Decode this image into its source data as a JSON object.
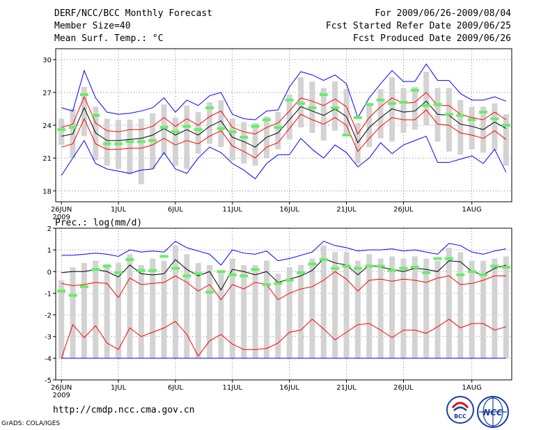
{
  "header": {
    "title": "DERF/NCC/BCC Monthly Forecast",
    "member_size": "Member Size=40",
    "variable": "Mean Surf. Temp.: °C",
    "period": "For 2009/06/26-2009/08/04",
    "fcst_started": "Fcst Started Refer Date 2009/06/25",
    "fcst_produced": "Fcst Produced Date 2009/06/26"
  },
  "footer": {
    "url": "http://cmdp.ncc.cma.gov.cn",
    "grads": "GrADS: COLA/IGES",
    "logo_left": "BCC",
    "logo_right": "NCC"
  },
  "colors": {
    "max_min": "#0000ff",
    "spread": "#ff0000",
    "mean": "#000000",
    "member_bar": "#d3d3d3",
    "observed_marker": "#66ee66"
  },
  "chart_data": [
    {
      "type": "line",
      "title": "Mean Surf. Temp.: °C",
      "x_tick_labels": [
        "26JUN",
        "1JUL",
        "6JUL",
        "11JUL",
        "16JUL",
        "21JUL",
        "26JUL",
        "1AUG"
      ],
      "x_tick_days": [
        0,
        5,
        10,
        15,
        20,
        25,
        30,
        36
      ],
      "x_sub_label": "2009",
      "ylim": [
        17,
        31
      ],
      "y_ticks": [
        18,
        21,
        24,
        27,
        30
      ],
      "days": 40,
      "series": [
        {
          "name": "max",
          "color": "#0000ff",
          "values": [
            25.6,
            25.3,
            29.0,
            26.5,
            25.2,
            25.0,
            25.1,
            25.3,
            25.6,
            26.5,
            25.2,
            26.3,
            25.8,
            26.7,
            27.0,
            25.0,
            24.6,
            24.5,
            25.3,
            25.4,
            27.5,
            28.9,
            28.6,
            28.1,
            28.6,
            27.8,
            24.7,
            26.5,
            27.8,
            29.0,
            28.0,
            28.0,
            29.6,
            28.1,
            28.1,
            26.9,
            26.3,
            26.3,
            26.6,
            26.2
          ]
        },
        {
          "name": "upper",
          "color": "#ff0000",
          "values": [
            23.8,
            24.1,
            26.6,
            24.2,
            23.5,
            23.4,
            23.6,
            23.6,
            23.9,
            24.7,
            23.9,
            24.6,
            24.0,
            24.8,
            25.3,
            23.8,
            23.4,
            23.2,
            23.8,
            24.2,
            25.3,
            26.5,
            26.2,
            25.8,
            26.4,
            25.7,
            23.2,
            24.7,
            25.7,
            26.5,
            26.0,
            26.1,
            27.0,
            25.8,
            25.8,
            25.0,
            24.7,
            24.5,
            25.2,
            24.5
          ]
        },
        {
          "name": "mean",
          "color": "#000000",
          "values": [
            23.0,
            23.2,
            25.6,
            23.3,
            22.6,
            22.6,
            22.7,
            22.8,
            23.1,
            23.7,
            23.1,
            23.6,
            23.1,
            23.9,
            24.4,
            22.9,
            22.5,
            22.0,
            22.9,
            23.3,
            24.5,
            25.7,
            25.3,
            24.9,
            25.5,
            24.8,
            22.4,
            23.8,
            24.7,
            25.5,
            25.2,
            25.3,
            26.2,
            25.0,
            24.9,
            24.1,
            23.9,
            23.6,
            24.3,
            23.7
          ]
        },
        {
          "name": "lower",
          "color": "#ff0000",
          "values": [
            22.0,
            22.3,
            24.6,
            22.3,
            21.8,
            21.8,
            21.9,
            21.9,
            22.2,
            22.8,
            22.2,
            22.6,
            22.3,
            23.0,
            23.5,
            22.1,
            21.6,
            21.0,
            22.0,
            22.4,
            23.7,
            25.0,
            24.5,
            24.1,
            24.7,
            24.0,
            21.6,
            22.8,
            23.9,
            24.7,
            24.5,
            24.5,
            25.4,
            24.1,
            24.0,
            23.3,
            23.1,
            22.8,
            23.5,
            22.7
          ]
        },
        {
          "name": "min",
          "color": "#0000ff",
          "values": [
            19.4,
            21.0,
            22.6,
            20.5,
            20.0,
            19.8,
            19.6,
            19.9,
            20.0,
            21.5,
            20.0,
            19.6,
            21.0,
            22.0,
            21.5,
            20.5,
            19.9,
            19.1,
            20.5,
            21.3,
            21.3,
            22.8,
            21.8,
            21.0,
            22.2,
            21.5,
            20.2,
            21.0,
            22.4,
            21.4,
            22.2,
            22.6,
            23.0,
            20.6,
            20.6,
            20.9,
            21.2,
            20.5,
            21.8,
            19.7
          ]
        },
        {
          "name": "observed",
          "color": "#66ee66",
          "values": [
            23.6,
            23.8,
            26.8,
            24.9,
            22.3,
            22.3,
            22.5,
            22.5,
            22.6,
            23.8,
            23.4,
            23.9,
            23.6,
            25.6,
            23.7,
            23.4,
            22.9,
            23.9,
            24.5,
            23.8,
            26.3,
            26.0,
            25.6,
            26.8,
            25.6,
            23.1,
            24.7,
            25.9,
            26.3,
            26.0,
            26.1,
            27.2,
            25.8,
            25.9,
            25.0,
            24.9,
            24.5,
            25.2,
            24.6,
            24.0
          ]
        }
      ],
      "bars_low": [
        22.2,
        21.0,
        23.0,
        20.8,
        20.3,
        20.0,
        19.5,
        18.6,
        20.0,
        21.3,
        20.3,
        20.0,
        21.4,
        22.3,
        22.0,
        20.8,
        20.5,
        20.3,
        21.0,
        21.8,
        22.7,
        23.8,
        23.3,
        22.6,
        23.5,
        23.0,
        20.5,
        22.0,
        22.8,
        22.5,
        23.3,
        23.6,
        24.0,
        22.5,
        21.6,
        21.3,
        21.8,
        21.5,
        21.7,
        20.3
      ],
      "bars_high": [
        24.6,
        25.5,
        27.5,
        25.7,
        24.6,
        24.5,
        24.5,
        24.6,
        25.1,
        25.9,
        24.7,
        25.8,
        25.2,
        26.1,
        26.3,
        24.6,
        24.3,
        24.2,
        24.8,
        25.2,
        26.8,
        28.4,
        28.0,
        27.4,
        28.0,
        27.3,
        24.2,
        25.9,
        27.3,
        28.4,
        27.4,
        27.5,
        28.9,
        27.4,
        27.4,
        26.3,
        25.7,
        25.7,
        26.0,
        25.0
      ]
    },
    {
      "type": "line",
      "title": "Prec.: log(mm/d)",
      "x_tick_labels": [
        "26JUN",
        "1JUL",
        "6JUL",
        "11JUL",
        "16JUL",
        "21JUL",
        "26JUL",
        "1AUG"
      ],
      "x_tick_days": [
        0,
        5,
        10,
        15,
        20,
        25,
        30,
        36
      ],
      "x_sub_label": "2009",
      "ylim": [
        -5,
        2
      ],
      "y_ticks": [
        -5,
        -4,
        -3,
        -2,
        -1,
        0,
        1,
        2
      ],
      "days": 40,
      "series": [
        {
          "name": "max",
          "color": "#0000ff",
          "values": [
            0.75,
            0.75,
            0.8,
            0.85,
            0.8,
            0.7,
            1.0,
            0.9,
            0.95,
            0.9,
            1.4,
            1.1,
            0.95,
            0.8,
            0.3,
            1.0,
            0.85,
            0.8,
            0.95,
            0.5,
            0.6,
            0.75,
            0.9,
            1.4,
            1.2,
            1.1,
            0.95,
            1.0,
            1.0,
            1.05,
            0.95,
            1.0,
            0.9,
            0.8,
            1.3,
            1.2,
            0.9,
            0.8,
            0.95,
            1.05
          ]
        },
        {
          "name": "upper",
          "color": "#ff0000",
          "values": [
            -0.55,
            -0.65,
            -0.6,
            -0.5,
            -0.55,
            -1.2,
            -0.3,
            -0.6,
            -0.55,
            -0.5,
            -0.2,
            -0.5,
            -0.9,
            -0.6,
            -1.3,
            -0.6,
            -0.8,
            -0.5,
            -0.6,
            -1.3,
            -1.0,
            -0.8,
            -0.7,
            -0.4,
            0.0,
            -0.35,
            -0.9,
            -0.4,
            -0.35,
            -0.45,
            -0.35,
            -0.4,
            -0.5,
            -0.3,
            -0.2,
            -0.6,
            -0.55,
            -0.4,
            -0.2,
            -0.2
          ]
        },
        {
          "name": "mean",
          "color": "#000000",
          "values": [
            -0.05,
            0.0,
            0.0,
            0.1,
            0.0,
            -0.25,
            0.3,
            -0.1,
            -0.15,
            -0.1,
            0.55,
            0.1,
            -0.2,
            0.0,
            -0.85,
            0.1,
            0.0,
            -0.15,
            0.0,
            -0.5,
            -0.35,
            -0.2,
            0.05,
            0.6,
            0.4,
            0.3,
            -0.15,
            0.3,
            0.2,
            0.1,
            0.0,
            0.15,
            0.1,
            0.0,
            0.5,
            0.45,
            0.0,
            -0.15,
            0.15,
            0.3
          ]
        },
        {
          "name": "lower",
          "color": "#ff0000",
          "values": [
            -4.0,
            -2.45,
            -3.05,
            -2.5,
            -3.3,
            -3.6,
            -2.6,
            -3.0,
            -2.8,
            -2.6,
            -2.3,
            -2.9,
            -3.9,
            -3.2,
            -2.9,
            -3.35,
            -3.6,
            -3.6,
            -3.55,
            -3.3,
            -2.8,
            -2.7,
            -2.2,
            -2.65,
            -3.15,
            -2.8,
            -2.45,
            -2.4,
            -2.7,
            -3.05,
            -2.7,
            -2.7,
            -2.85,
            -2.55,
            -2.2,
            -2.6,
            -2.4,
            -2.4,
            -2.7,
            -2.55
          ]
        },
        {
          "name": "min",
          "color": "#0000ff",
          "values": [
            -4.0,
            -4.0,
            -4.0,
            -4.0,
            -4.0,
            -4.0,
            -4.0,
            -4.0,
            -4.0,
            -4.0,
            -4.0,
            -4.0,
            -4.0,
            -4.0,
            -4.0,
            -4.0,
            -4.0,
            -4.0,
            -4.0,
            -4.0,
            -4.0,
            -4.0,
            -4.0,
            -4.0,
            -4.0,
            -4.0,
            -4.0,
            -4.0,
            -4.0,
            -4.0,
            -4.0,
            -4.0,
            -4.0,
            -4.0,
            -4.0,
            -4.0,
            -4.0,
            -4.0,
            -4.0,
            -4.0
          ]
        },
        {
          "name": "observed",
          "color": "#66ee66",
          "values": [
            -0.9,
            -1.1,
            -0.7,
            0.1,
            0.25,
            -0.05,
            0.55,
            0.05,
            0.05,
            0.7,
            0.15,
            -0.2,
            -0.1,
            -0.95,
            0.0,
            -0.15,
            -0.2,
            0.1,
            -0.6,
            -0.55,
            -0.4,
            -0.05,
            0.35,
            0.55,
            0.15,
            0.25,
            0.15,
            0.25,
            0.25,
            0.05,
            0.15,
            0.2,
            -0.05,
            0.6,
            0.6,
            -0.15,
            0.0,
            -0.15,
            0.25,
            0.2
          ]
        }
      ],
      "bars_low": [
        -4.0,
        -4.0,
        -4.0,
        -4.0,
        -4.0,
        -4.0,
        -4.0,
        -4.0,
        -4.0,
        -4.0,
        -4.0,
        -4.0,
        -4.0,
        -4.0,
        -4.0,
        -4.0,
        -4.0,
        -4.0,
        -4.0,
        -4.0,
        -4.0,
        -4.0,
        -4.0,
        -4.0,
        -4.0,
        -4.0,
        -4.0,
        -4.0,
        -4.0,
        -4.0,
        -4.0,
        -4.0,
        -4.0,
        -4.0,
        -4.0,
        -4.0,
        -4.0,
        -4.0,
        -4.0,
        -4.0
      ],
      "bars_high": [
        -0.4,
        0.2,
        0.4,
        0.5,
        0.35,
        0.4,
        0.8,
        0.3,
        0.6,
        0.5,
        1.2,
        0.8,
        0.4,
        0.3,
        0.0,
        0.6,
        0.3,
        0.3,
        0.5,
        -0.1,
        0.2,
        0.3,
        0.6,
        1.2,
        0.9,
        0.9,
        0.5,
        0.8,
        0.6,
        0.7,
        0.6,
        0.7,
        0.6,
        0.5,
        1.1,
        0.9,
        0.5,
        0.5,
        0.6,
        0.7
      ]
    }
  ]
}
